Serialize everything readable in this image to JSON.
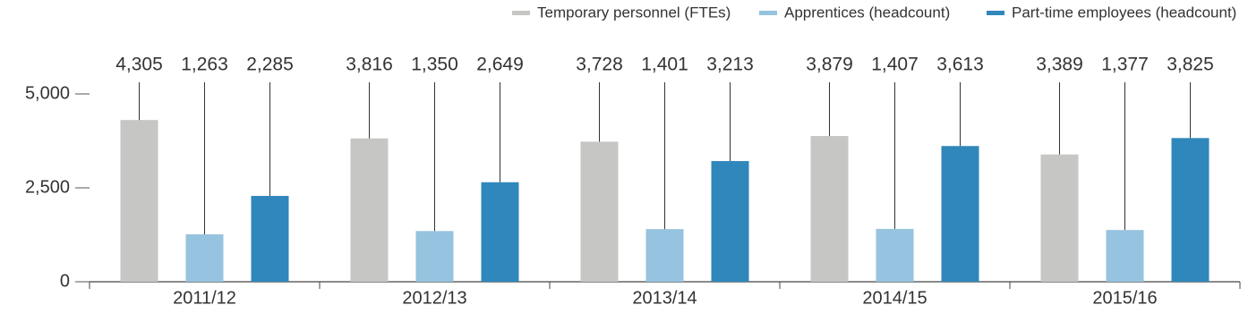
{
  "chart_data": {
    "type": "bar",
    "categories": [
      "2011/12",
      "2012/13",
      "2013/14",
      "2014/15",
      "2015/16"
    ],
    "series": [
      {
        "name": "Temporary personnel (FTEs)",
        "color": "#c6c6c5",
        "values": [
          4305,
          3816,
          3728,
          3879,
          3389
        ],
        "value_labels": [
          "4,305",
          "3,816",
          "3,728",
          "3,879",
          "3,389"
        ]
      },
      {
        "name": "Apprentices (headcount)",
        "color": "#96c3df",
        "values": [
          1263,
          1350,
          1401,
          1407,
          1377
        ],
        "value_labels": [
          "1,263",
          "1,350",
          "1,401",
          "1,407",
          "1,377"
        ]
      },
      {
        "name": "Part-time employees (headcount)",
        "color": "#2f87bb",
        "values": [
          2285,
          2649,
          3213,
          3613,
          3825
        ],
        "value_labels": [
          "2,285",
          "2,649",
          "3,213",
          "3,613",
          "3,825"
        ]
      }
    ],
    "ylim": [
      0,
      5000
    ],
    "yticks": [
      0,
      {
        "value": 2500,
        "label": "2,500"
      },
      {
        "value": 5000,
        "label": "5,000"
      }
    ],
    "legend": "top-right"
  }
}
